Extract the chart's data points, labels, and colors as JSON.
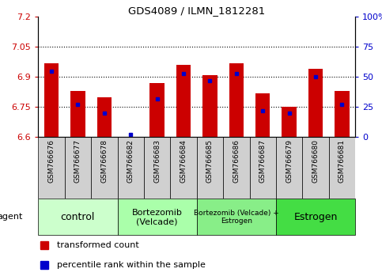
{
  "title": "GDS4089 / ILMN_1812281",
  "samples": [
    "GSM766676",
    "GSM766677",
    "GSM766678",
    "GSM766682",
    "GSM766683",
    "GSM766684",
    "GSM766685",
    "GSM766686",
    "GSM766687",
    "GSM766679",
    "GSM766680",
    "GSM766681"
  ],
  "transformed_counts": [
    6.97,
    6.83,
    6.8,
    6.6,
    6.87,
    6.96,
    6.91,
    6.97,
    6.82,
    6.75,
    6.94,
    6.83
  ],
  "percentile_ranks": [
    55,
    27,
    20,
    2,
    32,
    53,
    47,
    53,
    22,
    20,
    50,
    27
  ],
  "ylim_left": [
    6.6,
    7.2
  ],
  "ylim_right": [
    0,
    100
  ],
  "yticks_left": [
    6.6,
    6.75,
    6.9,
    7.05,
    7.2
  ],
  "yticks_right": [
    0,
    25,
    50,
    75,
    100
  ],
  "ytick_labels_left": [
    "6.6",
    "6.75",
    "6.9",
    "7.05",
    "7.2"
  ],
  "ytick_labels_right": [
    "0",
    "25",
    "50",
    "75",
    "100%"
  ],
  "hlines": [
    6.75,
    6.9,
    7.05
  ],
  "bar_color": "#cc0000",
  "dot_color": "#0000cc",
  "bar_bottom": 6.6,
  "groups": [
    {
      "label": "control",
      "start": 0,
      "end": 3,
      "color": "#ccffcc",
      "fontsize": 9
    },
    {
      "label": "Bortezomib\n(Velcade)",
      "start": 3,
      "end": 6,
      "color": "#aaffaa",
      "fontsize": 8
    },
    {
      "label": "Bortezomib (Velcade) +\nEstrogen",
      "start": 6,
      "end": 9,
      "color": "#88ee88",
      "fontsize": 6.5
    },
    {
      "label": "Estrogen",
      "start": 9,
      "end": 12,
      "color": "#44dd44",
      "fontsize": 9
    }
  ],
  "xlabel_agent": "agent",
  "legend_items": [
    "transformed count",
    "percentile rank within the sample"
  ],
  "bar_width": 0.55
}
